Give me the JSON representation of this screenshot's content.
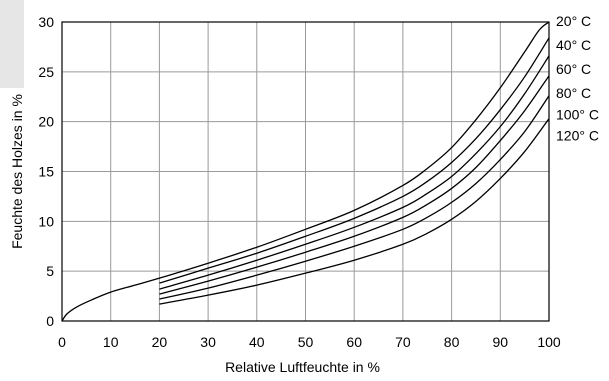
{
  "chart_data": {
    "type": "line",
    "xlabel": "Relative Luftfeuchte in %",
    "ylabel": "Feuchte des Holzes in %",
    "xlim": [
      0,
      100
    ],
    "ylim": [
      0,
      30
    ],
    "x_ticks": [
      0,
      10,
      20,
      30,
      40,
      50,
      60,
      70,
      80,
      90,
      100
    ],
    "y_ticks": [
      0,
      5,
      10,
      15,
      20,
      25,
      30
    ],
    "grid": true,
    "legend": "right-labels",
    "series": [
      {
        "name": "20° C",
        "x": [
          0,
          1,
          3,
          6,
          10,
          15,
          20,
          30,
          40,
          50,
          60,
          70,
          75,
          80,
          85,
          90,
          95,
          98,
          100
        ],
        "y": [
          0,
          0.7,
          1.4,
          2.1,
          2.9,
          3.6,
          4.3,
          5.8,
          7.4,
          9.2,
          11.1,
          13.6,
          15.3,
          17.4,
          20.2,
          23.4,
          27.0,
          29.2,
          30.0
        ]
      },
      {
        "name": "40° C",
        "x": [
          20,
          30,
          40,
          50,
          60,
          70,
          75,
          80,
          85,
          90,
          95,
          100
        ],
        "y": [
          3.8,
          5.3,
          6.8,
          8.5,
          10.3,
          12.5,
          14.0,
          15.9,
          18.3,
          21.2,
          24.5,
          28.4
        ]
      },
      {
        "name": "60° C",
        "x": [
          20,
          30,
          40,
          50,
          60,
          70,
          75,
          80,
          85,
          90,
          95,
          100
        ],
        "y": [
          3.2,
          4.6,
          6.1,
          7.7,
          9.4,
          11.4,
          12.8,
          14.5,
          16.8,
          19.5,
          22.8,
          26.6
        ]
      },
      {
        "name": "80° C",
        "x": [
          20,
          30,
          40,
          50,
          60,
          70,
          75,
          80,
          85,
          90,
          95,
          100
        ],
        "y": [
          2.7,
          4.0,
          5.4,
          6.9,
          8.5,
          10.4,
          11.7,
          13.3,
          15.4,
          18.1,
          21.1,
          24.6
        ]
      },
      {
        "name": "100° C",
        "x": [
          20,
          30,
          40,
          50,
          60,
          70,
          75,
          80,
          85,
          90,
          95,
          100
        ],
        "y": [
          2.2,
          3.3,
          4.6,
          6.0,
          7.5,
          9.2,
          10.4,
          11.9,
          13.8,
          16.2,
          19.0,
          22.6
        ]
      },
      {
        "name": "120° C",
        "x": [
          20,
          30,
          40,
          50,
          60,
          70,
          75,
          80,
          85,
          90,
          95,
          100
        ],
        "y": [
          1.7,
          2.6,
          3.6,
          4.8,
          6.1,
          7.7,
          8.8,
          10.2,
          12.0,
          14.3,
          17.0,
          20.3
        ]
      }
    ],
    "series_label_y": [
      30,
      27.6,
      25.2,
      22.8,
      20.6,
      18.5
    ]
  }
}
